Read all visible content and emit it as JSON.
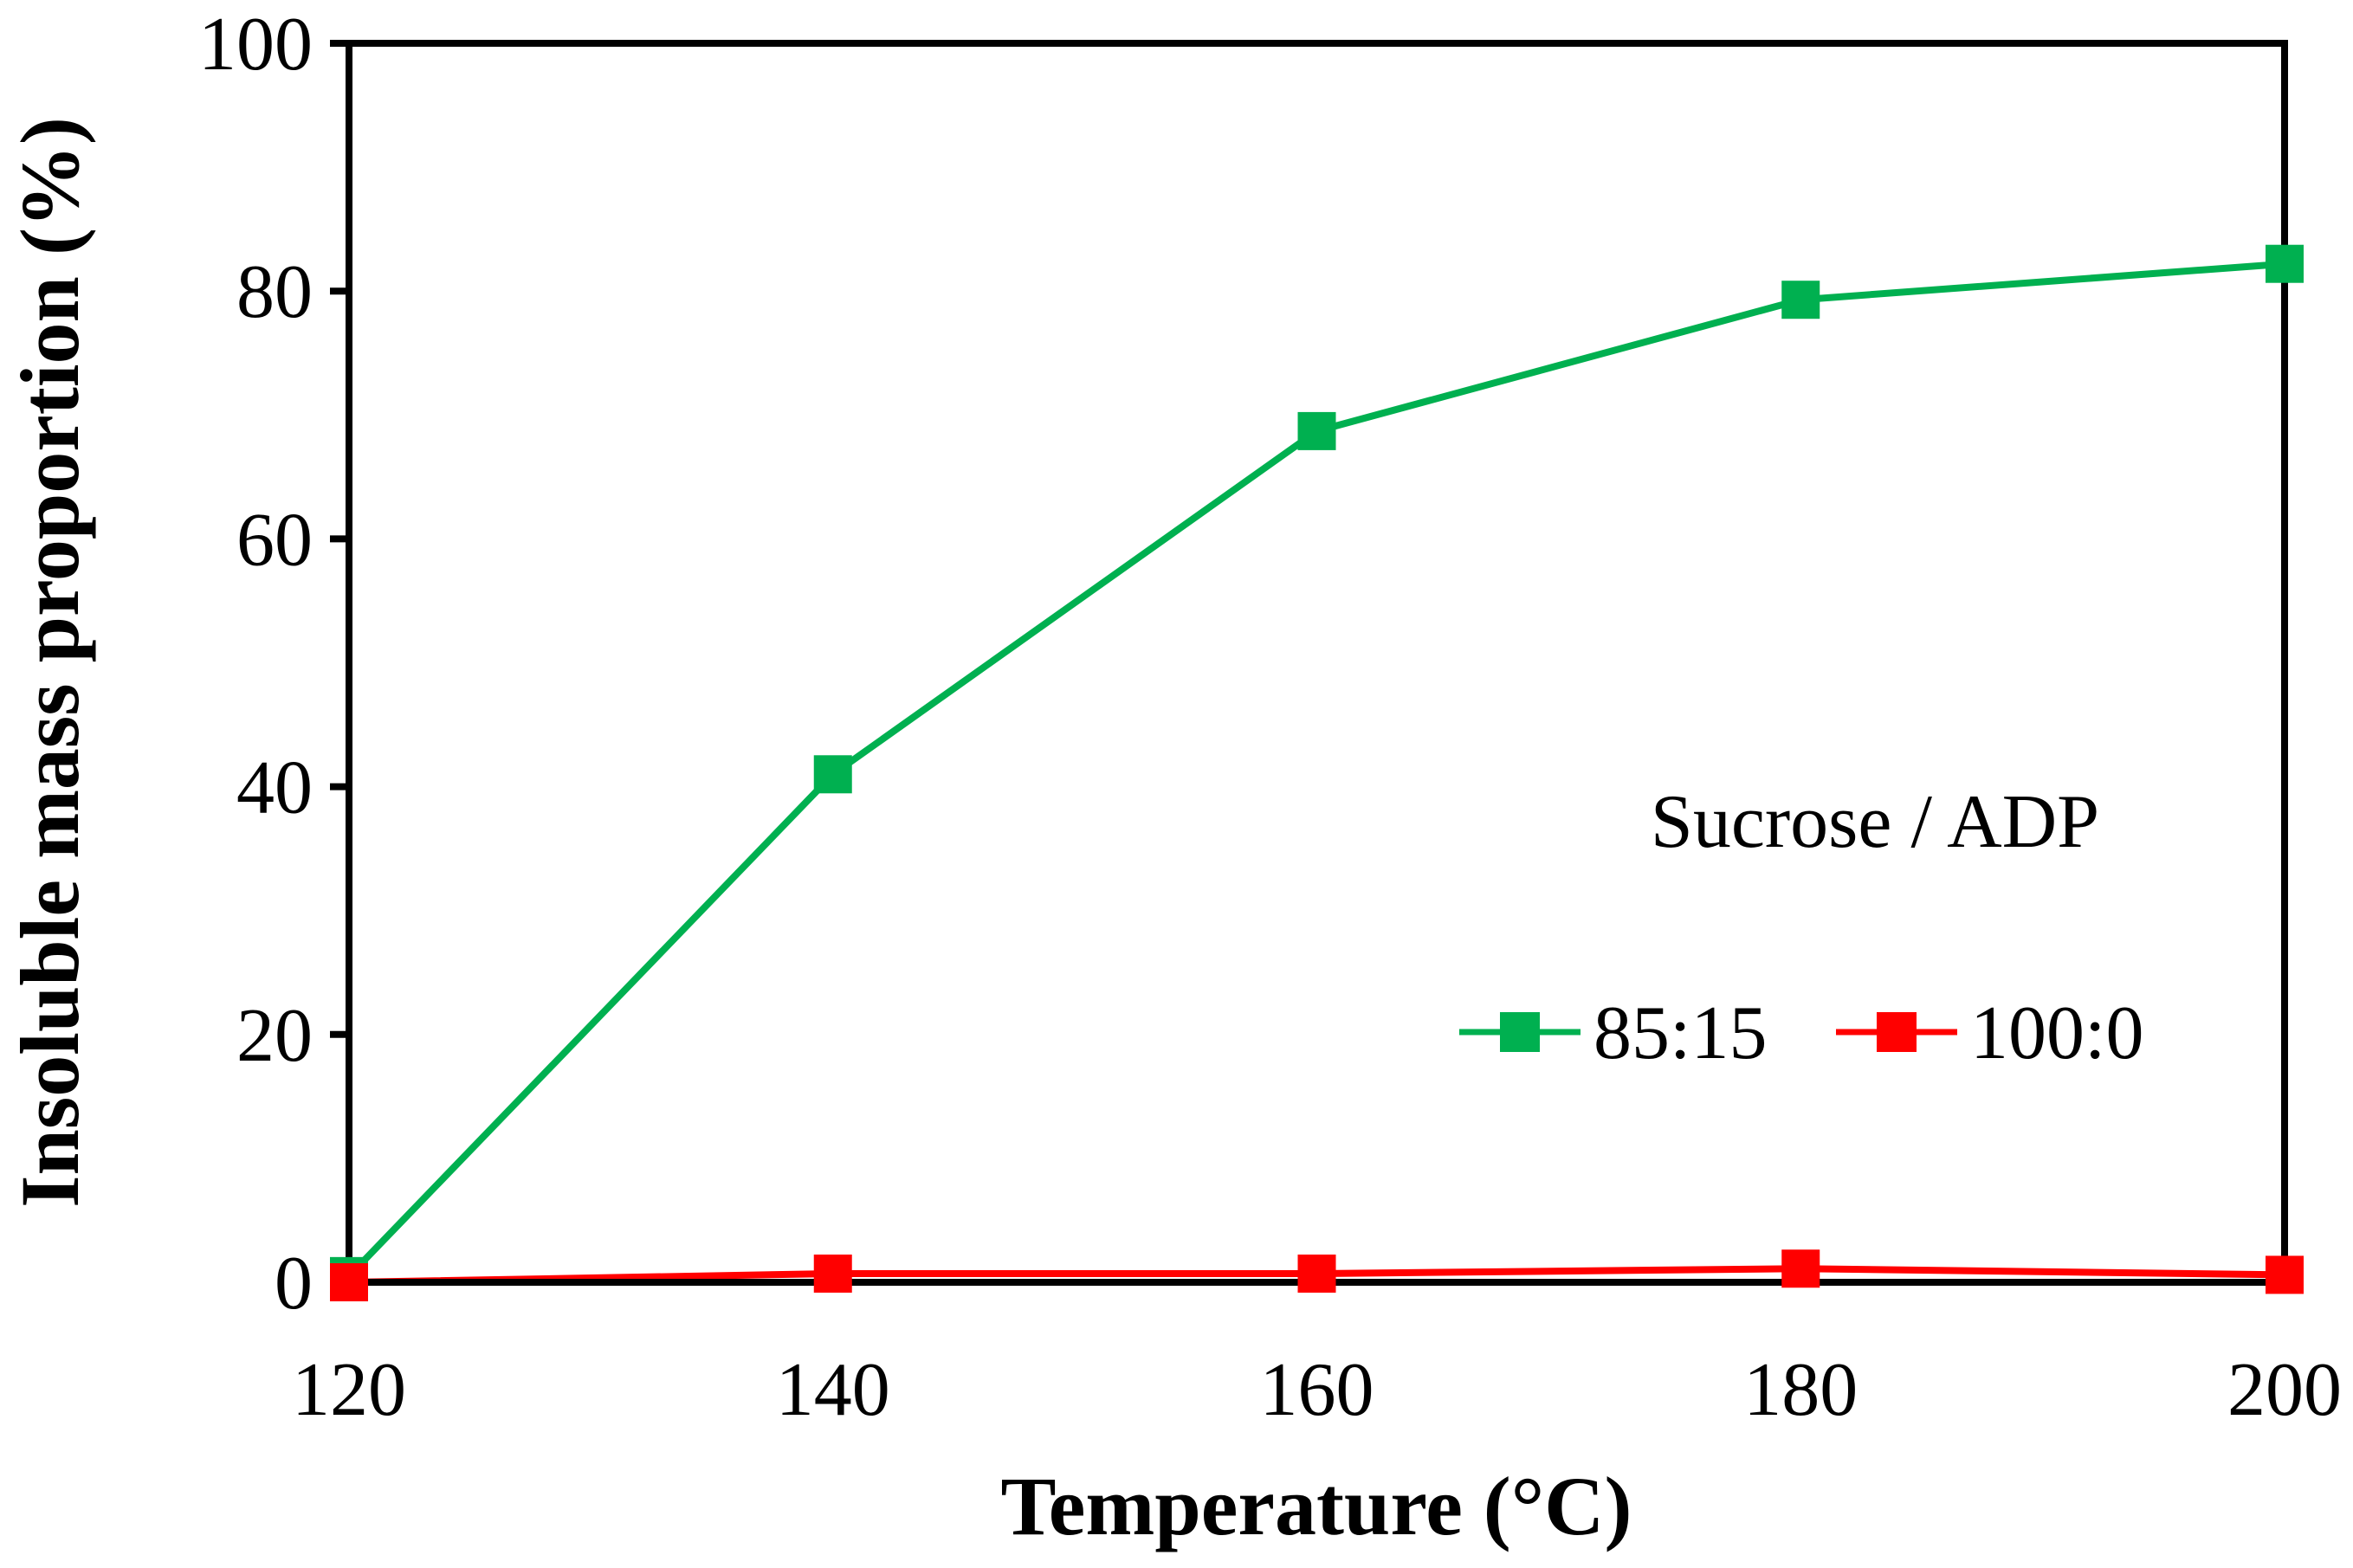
{
  "chart_data": {
    "type": "line",
    "title": "",
    "xlabel": "Temperature (°C)",
    "ylabel": "Insoluble mass proportion (%)",
    "xlim": [
      120,
      200
    ],
    "ylim": [
      0,
      100
    ],
    "xticks": [
      120,
      140,
      160,
      180,
      200
    ],
    "yticks": [
      0,
      20,
      40,
      60,
      80,
      100
    ],
    "x": [
      120,
      140,
      160,
      180,
      200
    ],
    "series": [
      {
        "name": "85:15",
        "color": "#00b050",
        "marker": "square",
        "values": [
          0.5,
          41,
          68.7,
          79.3,
          82.2
        ]
      },
      {
        "name": "100:0",
        "color": "#ff0000",
        "marker": "square",
        "values": [
          0,
          0.7,
          0.7,
          1.1,
          0.6
        ]
      }
    ],
    "legend_title": "Sucrose / ADP",
    "legend_position": "right-middle",
    "grid": false
  }
}
